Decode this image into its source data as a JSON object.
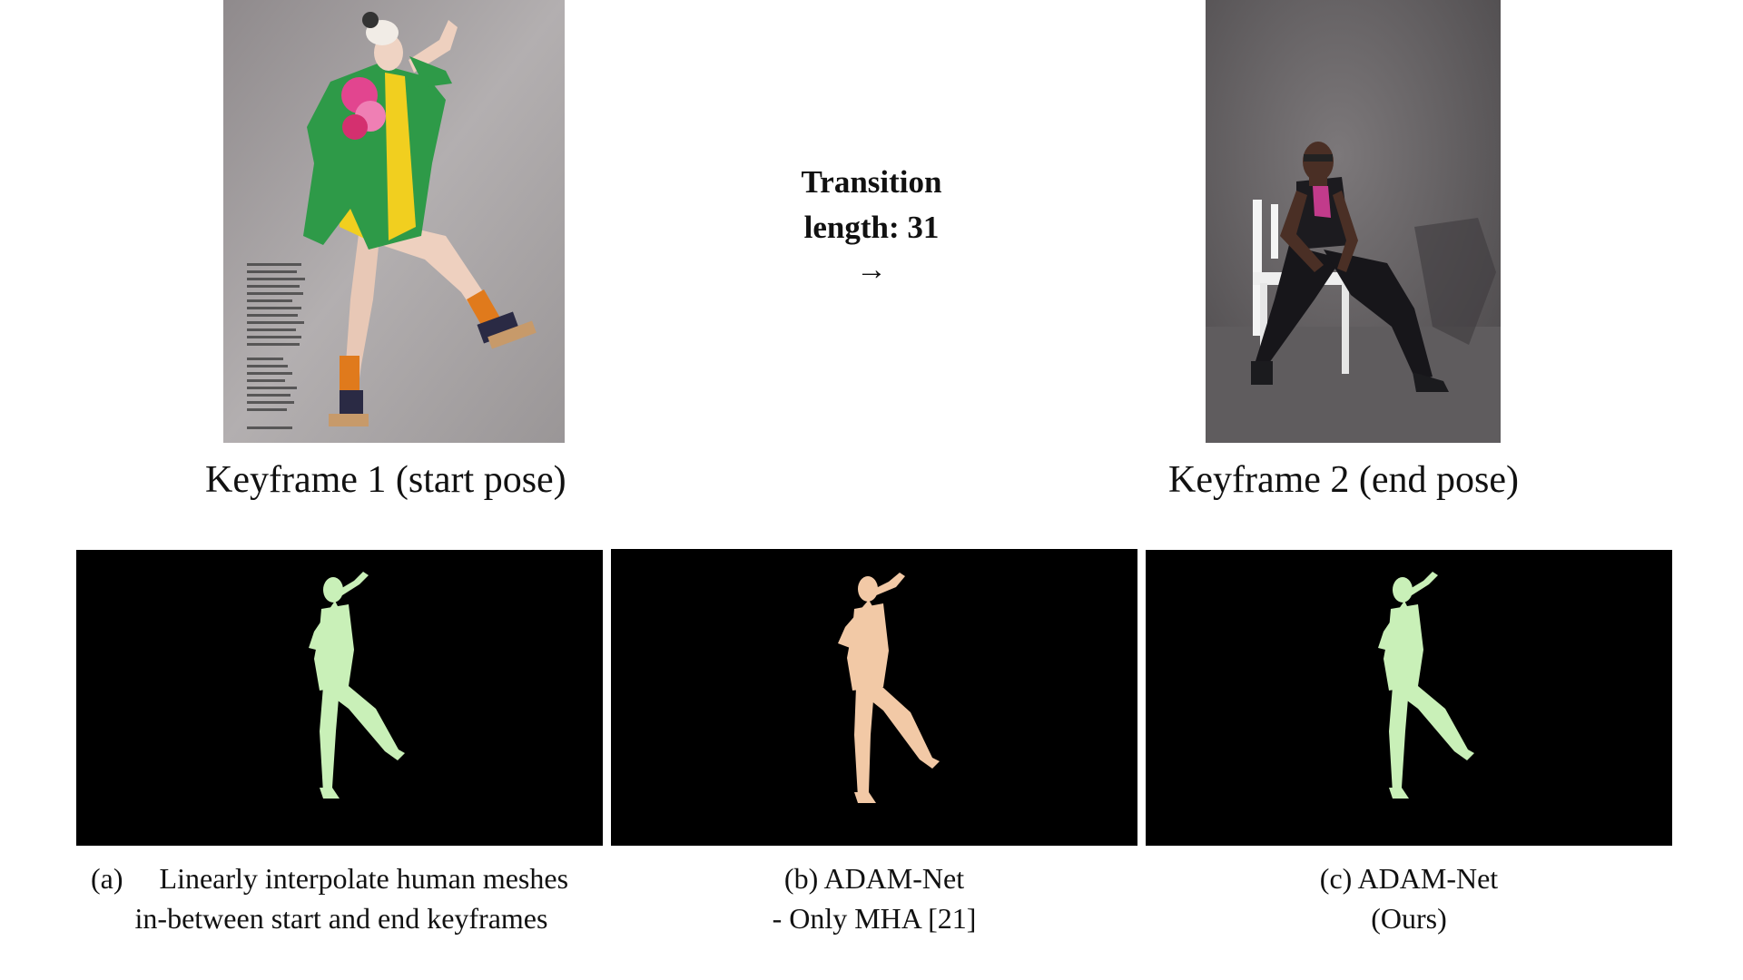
{
  "transition": {
    "line1": "Transition",
    "line2": "length: 31",
    "arrow": "→"
  },
  "keyframes": {
    "start_label": "Keyframe 1 (start pose)",
    "end_label": "Keyframe 2 (end pose)"
  },
  "captions": {
    "a_line1": "(a)     Linearly interpolate human meshes",
    "a_line2": "in-between start and end keyframes",
    "b_line1": "(b) ADAM-Net",
    "b_line2": "- Only MHA [21]",
    "c_line1": "(c) ADAM-Net",
    "c_line2": "(Ours)"
  },
  "colors": {
    "mesh_green": "#c9f0b8",
    "mesh_skin": "#f2c9a6",
    "panel_bg": "#000000",
    "coat_green": "#2e9a48",
    "skirt_yellow": "#f1cf1f",
    "studio_gray": "#a9a5a6"
  }
}
